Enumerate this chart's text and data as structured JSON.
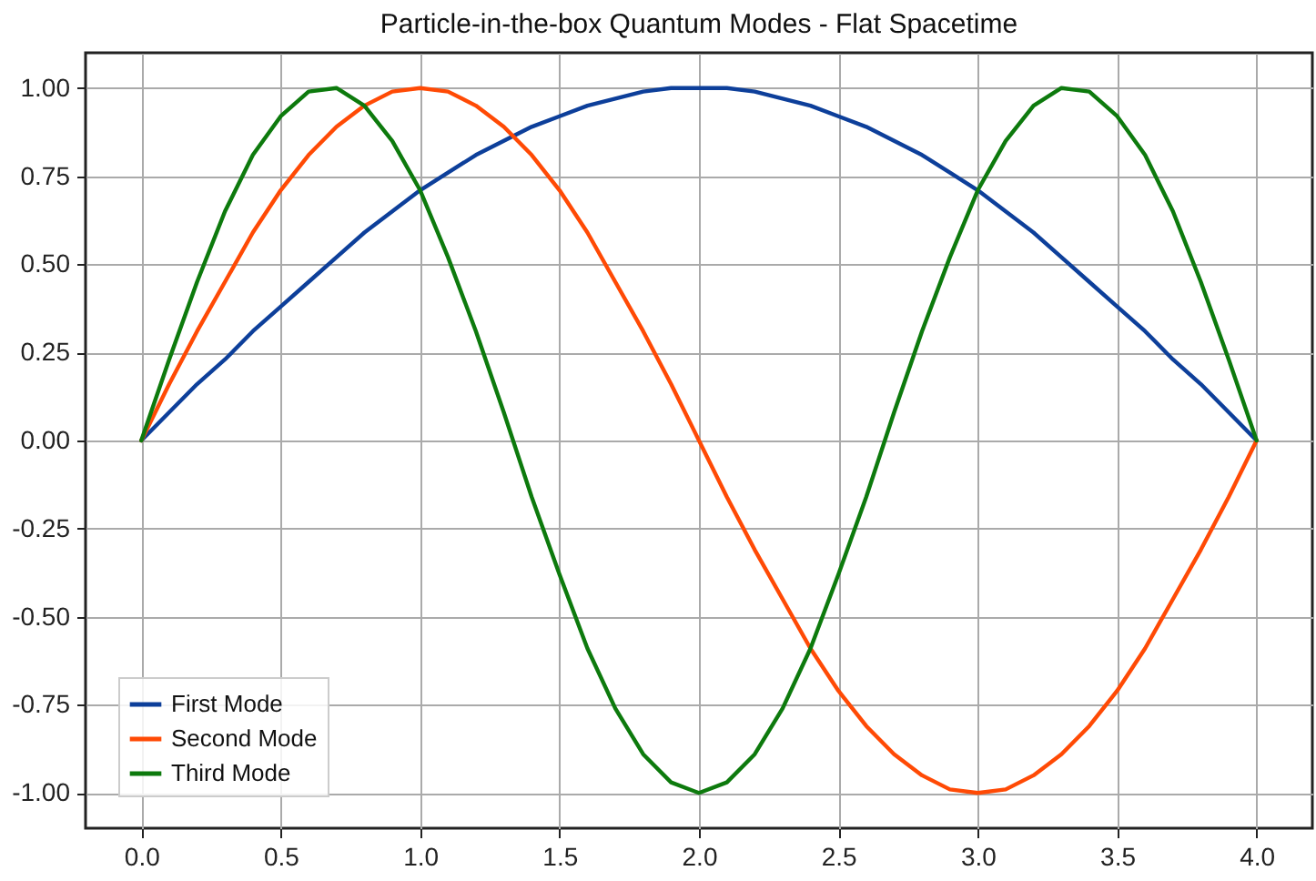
{
  "chart_data": {
    "type": "line",
    "title": "Particle-in-the-box Quantum Modes - Flat Spacetime",
    "x": [
      0,
      0.1,
      0.2,
      0.3,
      0.4,
      0.5,
      0.6,
      0.7,
      0.8,
      0.9,
      1.0,
      1.1,
      1.2,
      1.3,
      1.4,
      1.5,
      1.6,
      1.7,
      1.8,
      1.9,
      2.0,
      2.1,
      2.2,
      2.3,
      2.4,
      2.5,
      2.6,
      2.7,
      2.8,
      2.9,
      3.0,
      3.1,
      3.2,
      3.3,
      3.4,
      3.5,
      3.6,
      3.7,
      3.8,
      3.9,
      4.0
    ],
    "series": [
      {
        "name": "First Mode",
        "color": "#0d3f9a",
        "values": [
          0,
          0.08,
          0.16,
          0.23,
          0.31,
          0.38,
          0.45,
          0.52,
          0.59,
          0.65,
          0.71,
          0.76,
          0.81,
          0.85,
          0.89,
          0.92,
          0.95,
          0.97,
          0.99,
          1.0,
          1.0,
          1.0,
          0.99,
          0.97,
          0.95,
          0.92,
          0.89,
          0.85,
          0.81,
          0.76,
          0.71,
          0.65,
          0.59,
          0.52,
          0.45,
          0.38,
          0.31,
          0.23,
          0.16,
          0.08,
          0
        ]
      },
      {
        "name": "Second Mode",
        "color": "#ff4a05",
        "values": [
          0,
          0.16,
          0.31,
          0.45,
          0.59,
          0.71,
          0.81,
          0.89,
          0.95,
          0.99,
          1.0,
          0.99,
          0.95,
          0.89,
          0.81,
          0.71,
          0.59,
          0.45,
          0.31,
          0.16,
          0,
          -0.16,
          -0.31,
          -0.45,
          -0.59,
          -0.71,
          -0.81,
          -0.89,
          -0.95,
          -0.99,
          -1.0,
          -0.99,
          -0.95,
          -0.89,
          -0.81,
          -0.71,
          -0.59,
          -0.45,
          -0.31,
          -0.16,
          0
        ]
      },
      {
        "name": "Third Mode",
        "color": "#0d7a0d",
        "values": [
          0,
          0.23,
          0.45,
          0.65,
          0.81,
          0.92,
          0.99,
          1.0,
          0.95,
          0.85,
          0.71,
          0.52,
          0.31,
          0.08,
          -0.16,
          -0.38,
          -0.59,
          -0.76,
          -0.89,
          -0.97,
          -1.0,
          -0.97,
          -0.89,
          -0.76,
          -0.59,
          -0.38,
          -0.16,
          0.08,
          0.31,
          0.52,
          0.71,
          0.85,
          0.95,
          1.0,
          0.99,
          0.92,
          0.81,
          0.65,
          0.45,
          0.23,
          0
        ]
      }
    ],
    "xlim": [
      -0.2,
      4.2
    ],
    "xticks": [
      {
        "value": 0,
        "label": "0.0"
      },
      {
        "value": 0.5,
        "label": "0.5"
      },
      {
        "value": 1,
        "label": "1.0"
      },
      {
        "value": 1.5,
        "label": "1.5"
      },
      {
        "value": 2,
        "label": "2.0"
      },
      {
        "value": 2.5,
        "label": "2.5"
      },
      {
        "value": 3,
        "label": "3.0"
      },
      {
        "value": 3.5,
        "label": "3.5"
      },
      {
        "value": 4,
        "label": "4.0"
      }
    ],
    "ylim": [
      -1.1,
      1.1
    ],
    "yticks": [
      {
        "value": -1,
        "label": "-1.00"
      },
      {
        "value": -0.75,
        "label": "-0.75"
      },
      {
        "value": -0.5,
        "label": "-0.50"
      },
      {
        "value": -0.25,
        "label": "-0.25"
      },
      {
        "value": 0,
        "label": "0.00"
      },
      {
        "value": 0.25,
        "label": "0.25"
      },
      {
        "value": 0.5,
        "label": "0.50"
      },
      {
        "value": 0.75,
        "label": "0.75"
      },
      {
        "value": 1,
        "label": "1.00"
      }
    ],
    "grid": true,
    "legend": "bottom left"
  }
}
